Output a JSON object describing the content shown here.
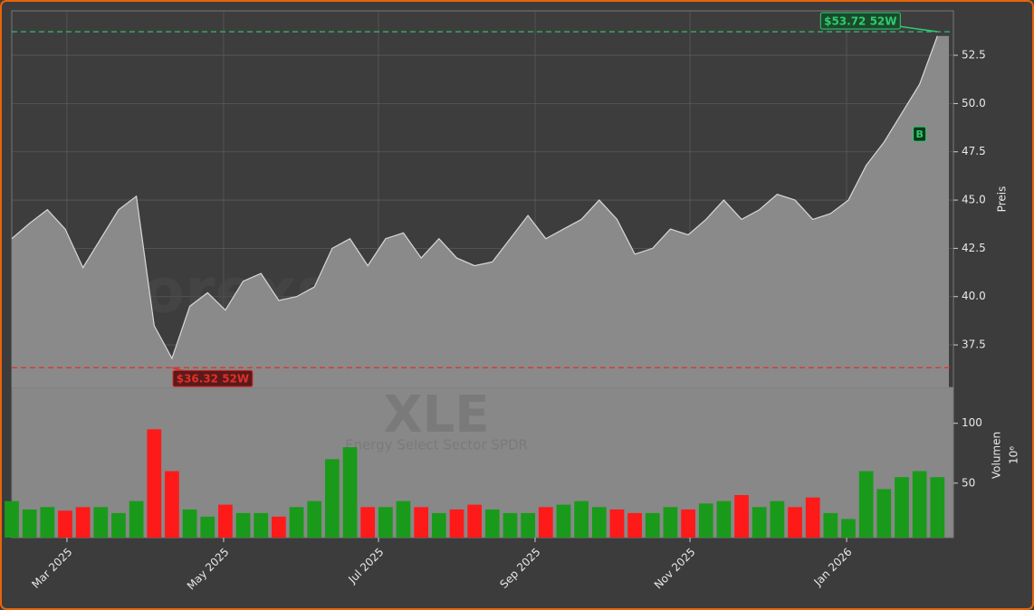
{
  "chart_data": [
    {
      "type": "area",
      "title": "XLE",
      "subtitle": "Energy Select Sector SPDR",
      "watermark": "forexsignale.trade",
      "y_label": "Preis",
      "color": "#8a8a8a",
      "values": [
        43.0,
        43.8,
        44.5,
        43.5,
        41.5,
        43.0,
        44.5,
        45.2,
        38.5,
        36.8,
        39.5,
        40.2,
        39.3,
        40.8,
        41.2,
        39.8,
        40.0,
        40.5,
        42.5,
        43.0,
        41.6,
        43.0,
        43.3,
        42.0,
        43.0,
        42.0,
        41.6,
        41.8,
        43.0,
        44.2,
        43.0,
        43.5,
        44.0,
        45.0,
        44.0,
        42.2,
        42.5,
        43.5,
        43.2,
        44.0,
        45.0,
        44.0,
        44.5,
        45.3,
        45.0,
        44.0,
        44.3,
        45.0,
        46.8,
        48.0,
        49.5,
        51.0,
        53.5
      ],
      "xlim": [
        0,
        52.9
      ],
      "ylim": [
        35.3,
        54.8
      ],
      "yticks": [
        37.5,
        {
          "value": 40,
          "label": "40.0"
        },
        42.5,
        {
          "value": 45,
          "label": "45.0"
        },
        47.5,
        {
          "value": 50,
          "label": "50.0"
        },
        52.5
      ],
      "grid": true,
      "annotations": [
        {
          "value": 53.72,
          "label": "$53.72 52W",
          "color": "#2ecc71"
        },
        {
          "value": 36.32,
          "label": "$36.32 52W",
          "color": "#e0302a"
        }
      ],
      "signals": [
        {
          "label": "B",
          "x": 51
        }
      ]
    },
    {
      "type": "bar",
      "y_label": "Volumen",
      "y_scale_label": "10⁶",
      "up_color": "#1a9a1a",
      "down_color": "#ff1a1a",
      "values": [
        35,
        28,
        30,
        27,
        30,
        30,
        25,
        35,
        95,
        60,
        28,
        22,
        32,
        25,
        25,
        22,
        30,
        35,
        70,
        80,
        30,
        30,
        35,
        30,
        25,
        28,
        32,
        28,
        25,
        25,
        30,
        32,
        35,
        30,
        28,
        25,
        25,
        30,
        28,
        33,
        35,
        40,
        30,
        35,
        30,
        38,
        25,
        20,
        60,
        45,
        55,
        60,
        55
      ],
      "xlim": [
        0,
        52.9
      ],
      "ylim": [
        4.5,
        130
      ],
      "yticks": [
        50,
        100
      ],
      "xticks": [
        {
          "value": 3.1,
          "label": "Mar 2025"
        },
        {
          "value": 11.9,
          "label": "May 2025"
        },
        {
          "value": 20.6,
          "label": "Jul 2025"
        },
        {
          "value": 29.4,
          "label": "Sep 2025"
        },
        {
          "value": 38.1,
          "label": "Nov 2025"
        },
        {
          "value": 46.9,
          "label": "Jan 2026"
        }
      ]
    }
  ]
}
